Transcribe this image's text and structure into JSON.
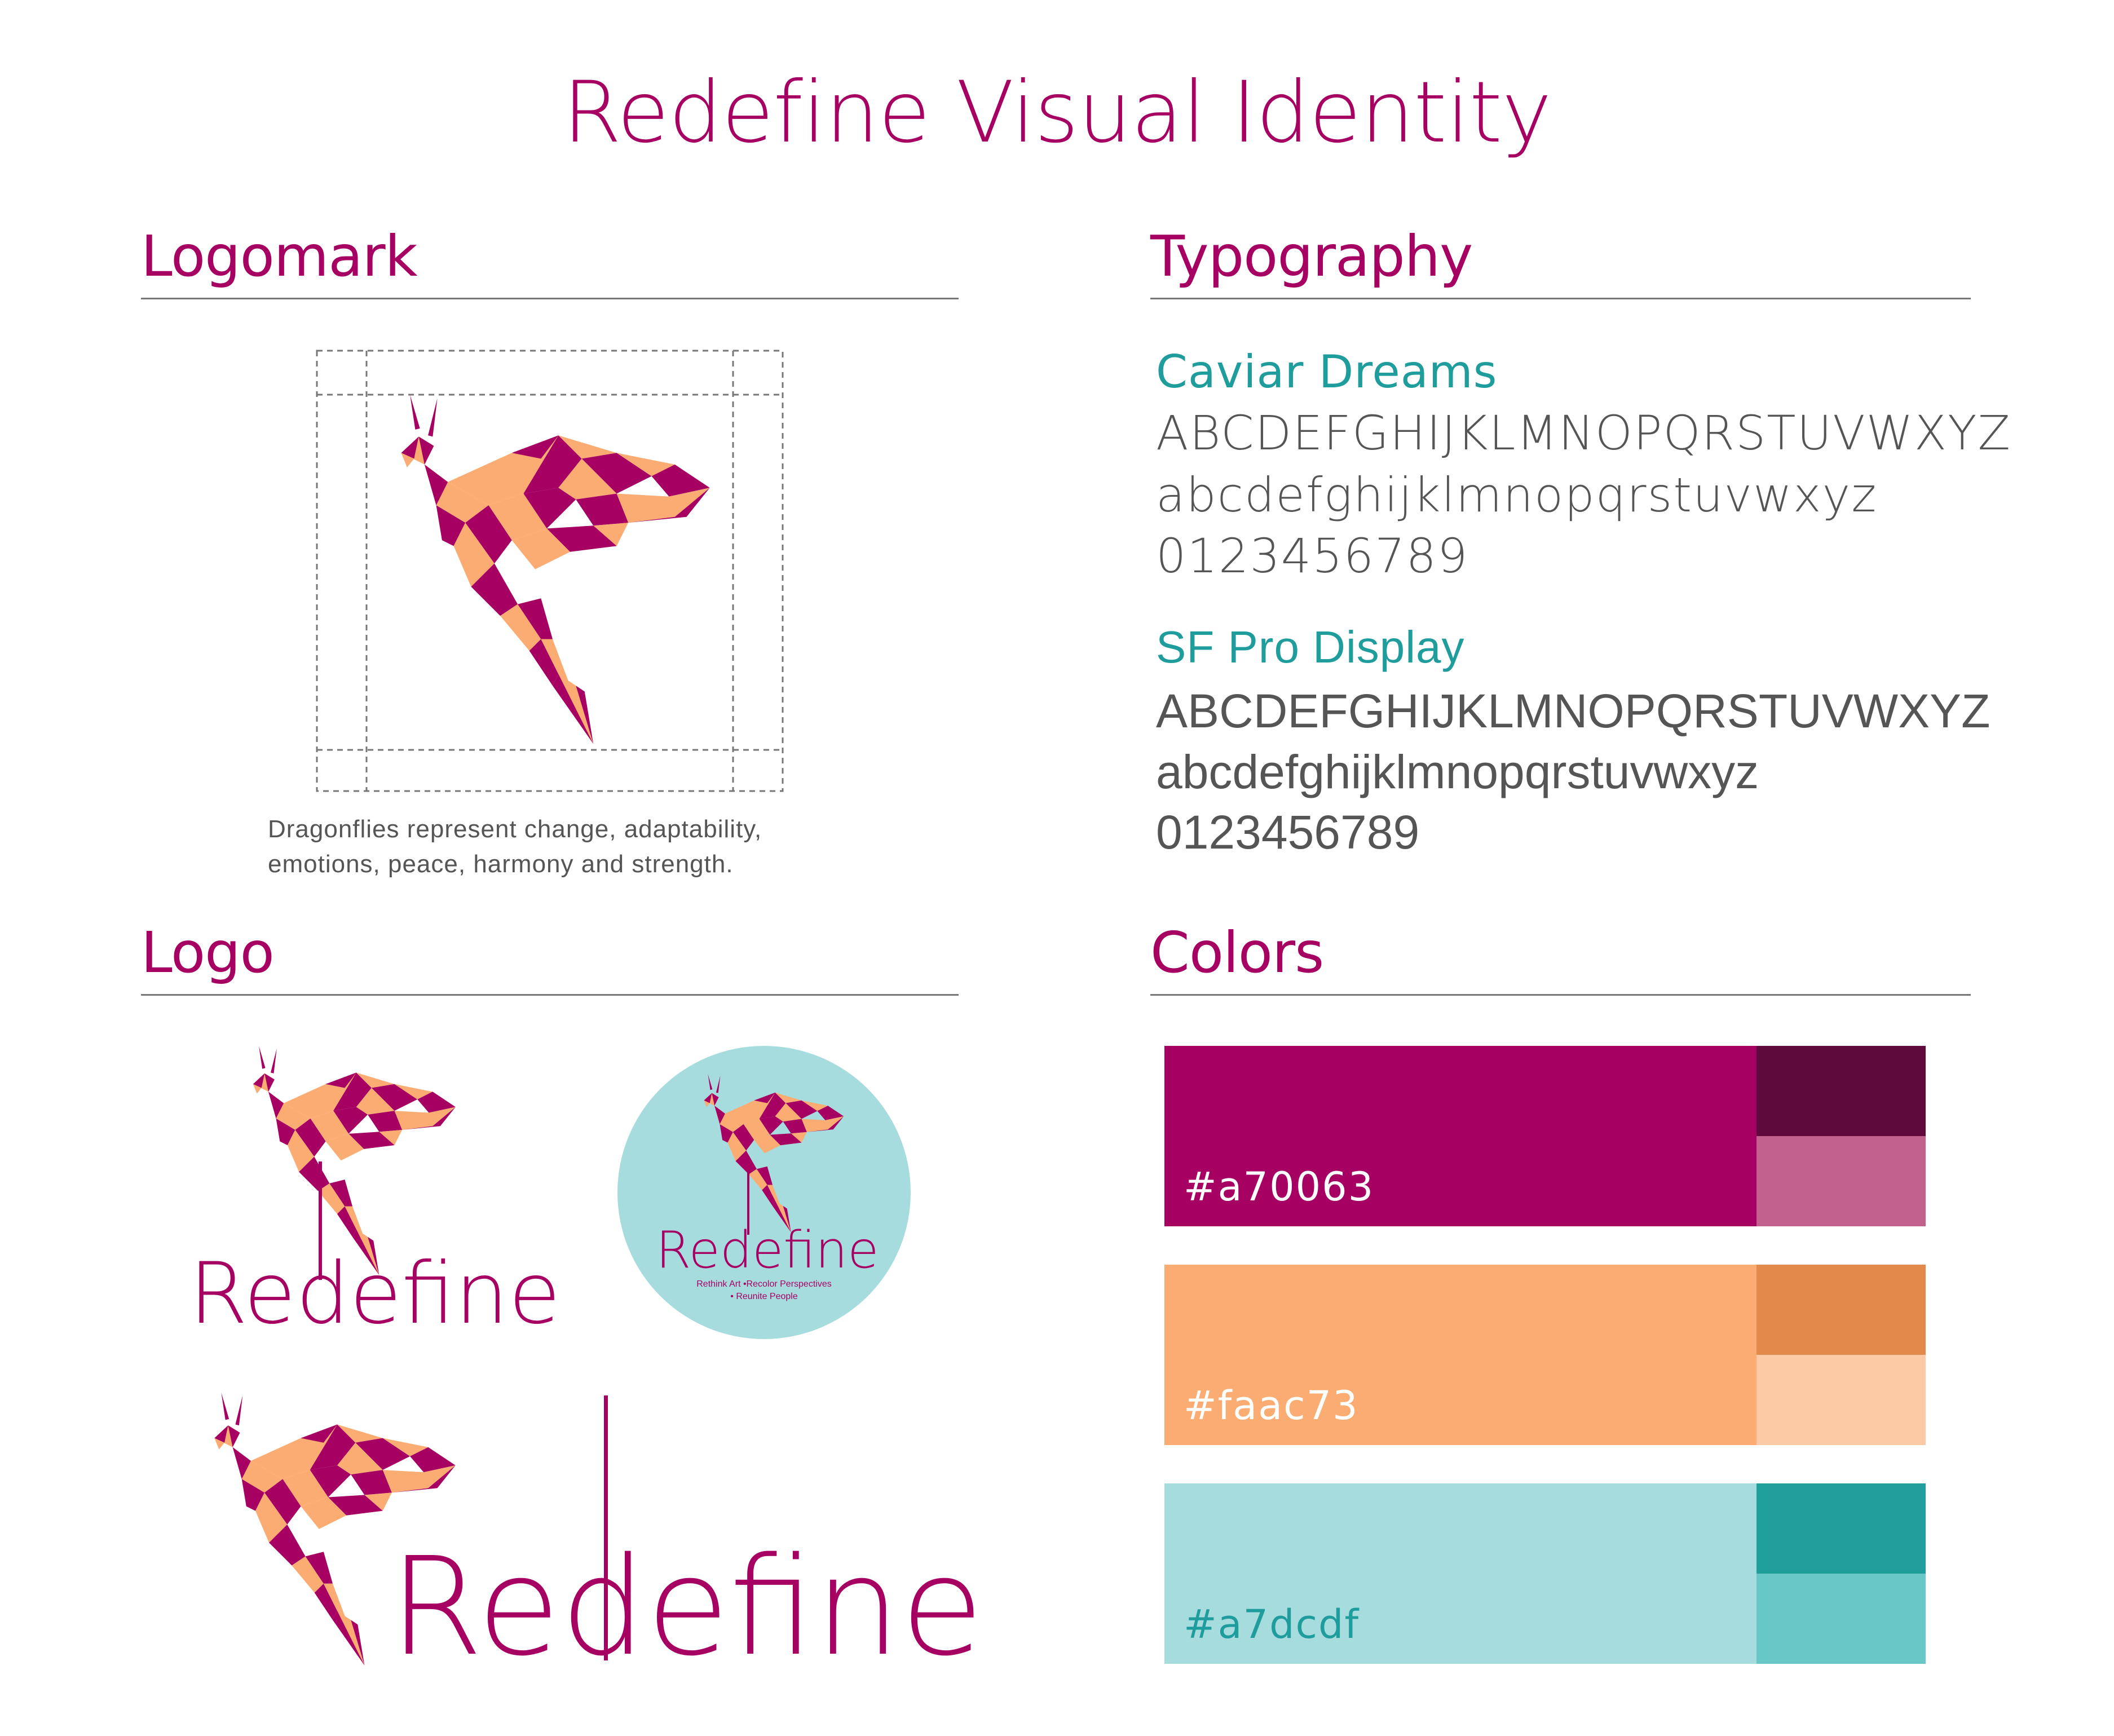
{
  "title": "Redefine Visual Identity",
  "sections": {
    "logomark": {
      "title": "Logomark",
      "caption_line1": "Dragonflies represent change, adaptability,",
      "caption_line2": "emotions, peace, harmony and strength.",
      "icon": "dragonfly-icon"
    },
    "typography": {
      "title": "Typography",
      "fonts": [
        {
          "name": "Caviar Dreams",
          "uppercase": "ABCDEFGHIJKLMNOPQRSTUVWXYZ",
          "lowercase": "abcdefghijklmnopqrstuvwxyz",
          "digits": "0123456789"
        },
        {
          "name": "SF Pro Display",
          "uppercase": "ABCDEFGHIJKLMNOPQRSTUVWXYZ",
          "lowercase": "abcdefghijklmnopqrstuvwxyz",
          "digits": "0123456789"
        }
      ]
    },
    "logo": {
      "title": "Logo",
      "wordmark": "Redefine",
      "badge_tagline1": "Rethink Art •Recolor Perspectives",
      "badge_tagline2": "• Reunite People"
    },
    "colors": {
      "title": "Colors",
      "swatches": [
        {
          "hex_label": "#a70063",
          "main": "#a70063",
          "dark": "#5e0a3c",
          "light": "#c2618e",
          "text_color": "#ffffff"
        },
        {
          "hex_label": "#faac73",
          "main": "#faac73",
          "dark": "#e2894c",
          "light": "#fccba5",
          "text_color": "#ffffff"
        },
        {
          "hex_label": "#a7dcdf",
          "main": "#a7dcdf",
          "dark": "#209e9b",
          "light": "#68c8c8",
          "text_color": "#1f9c9c"
        }
      ]
    }
  },
  "palette": {
    "magenta": "#a70063",
    "peach": "#faac73",
    "aqua": "#a7dcdf",
    "teal": "#1f9c9c"
  }
}
